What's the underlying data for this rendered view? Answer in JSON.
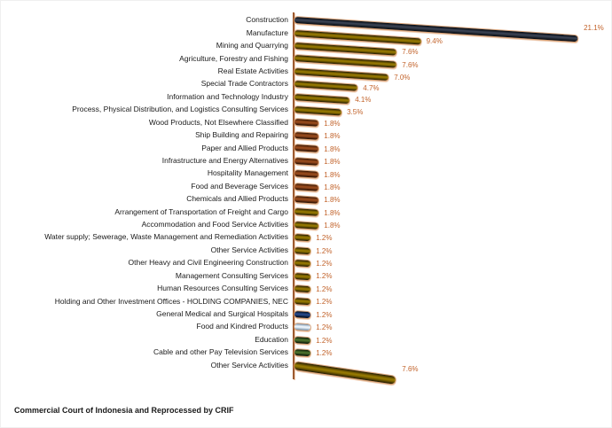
{
  "chart_data": {
    "type": "bar",
    "orientation": "horizontal",
    "style": "3d-cylinder",
    "value_unit": "%",
    "xlim": [
      0,
      22
    ],
    "grid": false,
    "legend": false,
    "categories": [
      "Construction",
      "Manufacture",
      "Mining and Quarrying",
      "Agriculture, Forestry and Fishing",
      "Real Estate Activities",
      "Special Trade Contractors",
      "Information and Technology Industry",
      "Process, Physical Distribution, and Logistics Consulting Services",
      "Wood Products, Not Elsewhere Classified",
      "Ship Building and Repairing",
      "Paper and Allied Products",
      "Infrastructure and Energy Alternatives",
      "Hospitality Management",
      "Food and Beverage Services",
      "Chemicals and Allied Products",
      "Arrangement of Transportation of Freight and Cargo",
      "Accommodation and Food Service Activities",
      "Water supply; Sewerage, Waste Management and Remediation Activities",
      "Other Service Activities",
      "Other Heavy and Civil Engineering Construction",
      "Management Consulting Services",
      "Human Resources Consulting Services",
      "Holding and Other Investment Offices - HOLDING COMPANIES, NEC",
      "General Medical and Surgical Hospitals",
      "Food and Kindred Products",
      "Education",
      "Cable and other Pay Television Services",
      "Other Service Activities"
    ],
    "values": [
      21.1,
      9.4,
      7.6,
      7.6,
      7.0,
      4.7,
      4.1,
      3.5,
      1.8,
      1.8,
      1.8,
      1.8,
      1.8,
      1.8,
      1.8,
      1.8,
      1.8,
      1.2,
      1.2,
      1.2,
      1.2,
      1.2,
      1.2,
      1.2,
      1.2,
      1.2,
      1.2,
      7.6
    ],
    "value_labels": [
      "21.1%",
      "9.4%",
      "7.6%",
      "7.6%",
      "7.0%",
      "4.7%",
      "4.1%",
      "3.5%",
      "1.8%",
      "1.8%",
      "1.8%",
      "1.8%",
      "1.8%",
      "1.8%",
      "1.8%",
      "1.8%",
      "1.8%",
      "1.2%",
      "1.2%",
      "1.2%",
      "1.2%",
      "1.2%",
      "1.2%",
      "1.2%",
      "1.2%",
      "1.2%",
      "1.2%",
      "7.6%"
    ],
    "bar_color_keys": [
      "dark",
      "olive",
      "olive",
      "olive",
      "olive",
      "olive",
      "olive",
      "olive",
      "brown",
      "brown",
      "brown",
      "brown",
      "brown",
      "brown",
      "brown",
      "olive",
      "olive",
      "olive",
      "olive",
      "olive",
      "olive",
      "olive",
      "olive",
      "navy",
      "lightblue",
      "green",
      "green",
      "olive"
    ],
    "palette": {
      "dark": "#2E3646",
      "olive": "#8A6F00",
      "brown": "#8F4617",
      "navy": "#1F3864",
      "lightblue": "#DCE6F1",
      "green": "#44622B"
    },
    "axis_color": "#9C5A30",
    "value_label_color": "#C2632B",
    "category_label_color": "#1A1A1A",
    "source_note": "Commercial Court of Indonesia and Reprocessed by CRIF"
  }
}
